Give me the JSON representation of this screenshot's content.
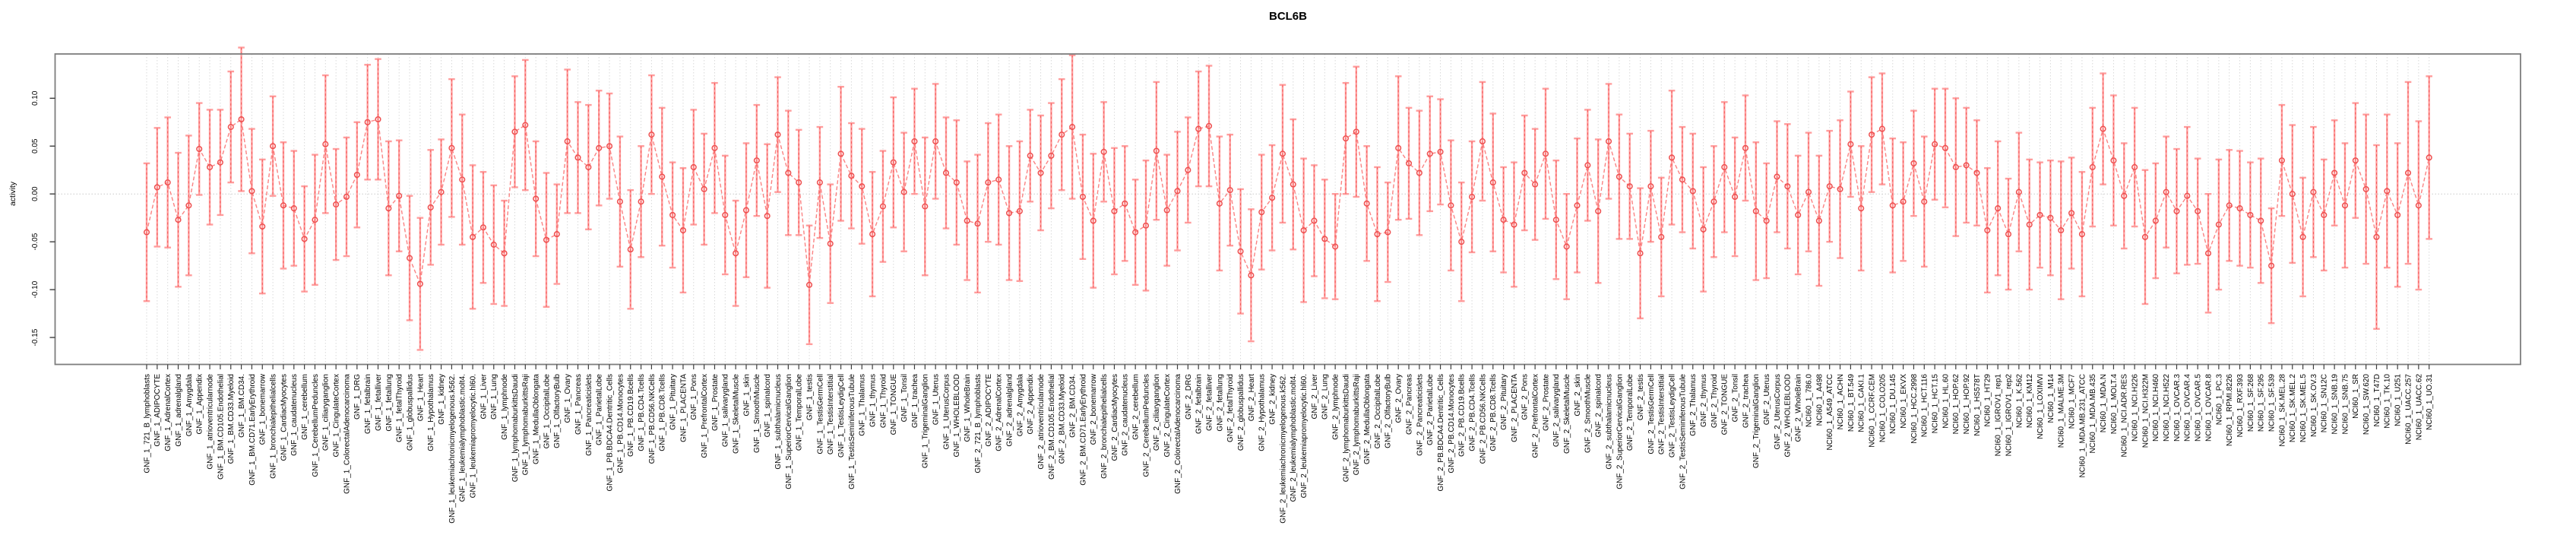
{
  "figure": {
    "title": "BCL6B"
  },
  "chart_data": {
    "type": "line",
    "subtype": "points-with-error-bars",
    "title": "BCL6B",
    "xlabel": "",
    "ylabel": "activity",
    "y_tick_labels": [
      "0.10",
      "0.05",
      "0.00",
      "-0.05",
      "-0.10",
      "-0.15"
    ],
    "y_tick_values": [
      0.1,
      0.05,
      0.0,
      -0.05,
      -0.1,
      -0.15
    ],
    "ylim": [
      -0.177,
      0.146
    ],
    "zero_line_dotted": true,
    "vertical_gridlines_dotted_per_sample": true,
    "legend": "none",
    "point_marker": "open-circle",
    "line_style": "dashed",
    "colors": {
      "error_bar": "#ff9d9d",
      "error_bar_dash": "#f35b5b",
      "point": "#ee4f4f",
      "series_line": "#fb8383",
      "gridline": "#d9d9d9",
      "zero_line": "#c9c9c9",
      "box": "#7d7d7d",
      "tick": "#3f3f3f",
      "text": "#000000"
    },
    "lists": {
      "gnf_tissues": [
        "721_B_lymphoblasts",
        "ADIPOCYTE",
        "AdrenalCortex",
        "adrenalgland",
        "Amygdala",
        "Appendix",
        "atrioventricularnode",
        "BM.CD105.Endothelial",
        "BM.CD33.Myeloid",
        "BM.CD34.",
        "BM.CD71.EarlyErythroid",
        "bonemarrow",
        "bronchialepithelialcells",
        "CardiacMyocytes",
        "caudatenucleus",
        "cerebellum",
        "CerebellumPeduncles",
        "ciliaryganglion",
        "CingulateCortex",
        "ColorectalAdenocarcinoma",
        "DRG",
        "fetalbrain",
        "fetalliver",
        "fetallung",
        "fetalThyroid",
        "globuspallidus",
        "Heart",
        "Hypothalamus",
        "kidney",
        "leukemiachronicmyelogenous.k562.",
        "leukemialymphoblastic.molt4.",
        "leukemiapromyelocytic.hl60.",
        "Liver",
        "Lung",
        "lymphnode",
        "lymphomaburkittsDaudi",
        "lymphomaburkittsRaji",
        "MedullaOblongata",
        "OccipitalLobe",
        "OlfactoryBulb",
        "Ovary",
        "Pancreas",
        "Pancreaticislets",
        "ParietalLobe",
        "PB.BDCA4.Dentritic_Cells",
        "PB.CD14.Monocytes",
        "PB.CD19.Bcells",
        "PB.CD4.Tcells",
        "PB.CD56.NKCells",
        "PB.CD8.Tcells",
        "Pituitary",
        "PLACENTA",
        "Pons",
        "PrefrontalCortex",
        "Prostate",
        "salivarygland",
        "SkeletalMuscle",
        "skin",
        "SmoothMuscle",
        "spinalcord",
        "subthalamicnucleus",
        "SuperiorCervicalGanglion",
        "TemporalLobe",
        "testis",
        "TestisGermCell",
        "TestisInterstitial",
        "TestisLeydigCell",
        "TestisSeminiferousTubule",
        "Thalamus",
        "thymus",
        "Thyroid",
        "TONGUE",
        "Tonsil",
        "trachea",
        "TrigeminalGanglion",
        "Uterus",
        "UterusCorpus",
        "WHOLEBLOOD",
        "WholeBrain"
      ],
      "nci60_lines": [
        "786.0",
        "A498",
        "A549_ATCC",
        "ACHN",
        "BT.549",
        "CAKI.1",
        "CCRF.CEM",
        "COLO205",
        "DU.145",
        "EKVX",
        "HCC.2998",
        "HCT.116",
        "HCT.15",
        "HL.60",
        "HOP.62",
        "HOP.92",
        "HS578T",
        "HT29",
        "IGROV1_rep1",
        "IGROV1_rep2",
        "K.562",
        "KM12",
        "LOXIMVI",
        "M14",
        "MALME.3M",
        "MCF7",
        "MDA.MB.231_ATCC",
        "MDA.MB.435",
        "MDA.N",
        "MOLT.4",
        "NCI.ADR.RES",
        "NCI.H226",
        "NCI.H322M",
        "NCI.H460",
        "NCI.H522",
        "OVCAR.3",
        "OVCAR.4",
        "OVCAR.5",
        "OVCAR.8",
        "PC.3",
        "RPMI.8226",
        "RXF.393",
        "SF.268",
        "SF.295",
        "SF.539",
        "SK.MEL.28",
        "SK.MEL.2",
        "SK.MEL.5",
        "SK.OV.3",
        "SN12C",
        "SNB.19",
        "SNB.75",
        "SR",
        "SW.620",
        "T47D",
        "TK.10",
        "U251",
        "UACC.257",
        "UACC.62",
        "UO.31"
      ]
    },
    "sample_groups": [
      {
        "prefix": "GNF_1_",
        "names_ref": "gnf_tissues"
      },
      {
        "prefix": "GNF_2_",
        "names_ref": "gnf_tissues"
      },
      {
        "prefix": "NCI60_1_",
        "names_ref": "nci60_lines"
      }
    ],
    "values": [
      -0.04,
      0.007,
      0.012,
      -0.027,
      -0.012,
      0.047,
      0.028,
      0.033,
      0.07,
      0.078,
      0.003,
      -0.034,
      0.05,
      -0.012,
      -0.015,
      -0.047,
      -0.027,
      0.052,
      -0.011,
      -0.003,
      0.02,
      0.075,
      0.078,
      -0.015,
      -0.002,
      -0.067,
      -0.094,
      -0.014,
      0.002,
      0.048,
      0.015,
      -0.045,
      -0.035,
      -0.053,
      -0.062,
      0.065,
      0.072,
      -0.005,
      -0.048,
      -0.042,
      0.055,
      0.038,
      0.028,
      0.048,
      0.05,
      -0.008,
      -0.058,
      -0.008,
      0.062,
      0.018,
      -0.022,
      -0.038,
      0.028,
      0.005,
      0.048,
      -0.022,
      -0.062,
      -0.017,
      0.035,
      -0.023,
      0.062,
      0.022,
      0.012,
      -0.095,
      0.012,
      -0.052,
      0.042,
      0.019,
      0.008,
      -0.042,
      -0.013,
      0.033,
      0.002,
      0.055,
      -0.013,
      0.055,
      0.022,
      0.012,
      -0.028,
      -0.031,
      0.012,
      0.015,
      -0.02,
      -0.018,
      0.04,
      0.022,
      0.04,
      0.062,
      0.07,
      -0.003,
      -0.028,
      0.044,
      -0.018,
      -0.01,
      -0.04,
      -0.033,
      0.045,
      -0.017,
      0.003,
      0.025,
      0.068,
      0.071,
      -0.01,
      0.004,
      -0.06,
      -0.085,
      -0.019,
      -0.004,
      0.042,
      0.01,
      -0.038,
      -0.028,
      -0.047,
      -0.055,
      0.058,
      0.065,
      -0.01,
      -0.042,
      -0.04,
      0.048,
      0.032,
      0.022,
      0.042,
      0.044,
      -0.012,
      -0.05,
      -0.003,
      0.055,
      0.012,
      -0.027,
      -0.032,
      0.022,
      0.01,
      0.042,
      -0.027,
      -0.055,
      -0.012,
      0.03,
      -0.018,
      0.055,
      0.018,
      0.008,
      -0.062,
      0.008,
      -0.045,
      0.038,
      0.015,
      0.003,
      -0.037,
      -0.008,
      0.028,
      -0.003,
      0.048,
      -0.018,
      -0.028,
      0.018,
      0.008,
      -0.022,
      0.002,
      -0.028,
      0.008,
      0.005,
      0.052,
      -0.015,
      0.062,
      0.068,
      -0.012,
      -0.008,
      0.032,
      -0.008,
      0.052,
      0.048,
      0.028,
      0.03,
      0.022,
      -0.038,
      -0.015,
      -0.042,
      0.002,
      -0.032,
      -0.022,
      -0.025,
      -0.038,
      -0.02,
      -0.042,
      0.028,
      0.068,
      0.035,
      -0.002,
      0.028,
      -0.045,
      -0.028,
      0.002,
      -0.018,
      -0.002,
      -0.018,
      -0.062,
      -0.032,
      -0.012,
      -0.015,
      -0.022,
      -0.028,
      -0.075,
      0.035,
      0.0,
      -0.045,
      0.002,
      -0.022,
      0.022,
      -0.012,
      0.035,
      0.005,
      -0.045,
      0.003,
      -0.022,
      0.022,
      -0.012,
      0.038
    ],
    "ci_halfwidth": [
      0.072,
      0.062,
      0.068,
      0.07,
      0.073,
      0.048,
      0.06,
      0.055,
      0.058,
      0.075,
      0.065,
      0.07,
      0.052,
      0.066,
      0.06,
      0.055,
      0.068,
      0.072,
      0.058,
      0.062,
      0.055,
      0.06,
      0.063,
      0.07,
      0.058,
      0.065,
      0.069,
      0.06,
      0.055,
      0.072,
      0.068,
      0.075,
      0.058,
      0.062,
      0.055,
      0.058,
      0.068,
      0.06,
      0.07,
      0.052,
      0.075,
      0.058,
      0.065,
      0.06,
      0.055,
      0.068,
      0.062,
      0.058,
      0.062,
      0.072,
      0.055,
      0.065,
      0.06,
      0.058,
      0.068,
      0.062,
      0.055,
      0.07,
      0.058,
      0.075,
      0.06,
      0.065,
      0.055,
      0.062,
      0.058,
      0.062,
      0.07,
      0.055,
      0.06,
      0.065,
      0.058,
      0.068,
      0.062,
      0.055,
      0.072,
      0.06,
      0.058,
      0.065,
      0.062,
      0.072,
      0.062,
      0.068,
      0.07,
      0.073,
      0.048,
      0.06,
      0.055,
      0.058,
      0.075,
      0.065,
      0.07,
      0.052,
      0.066,
      0.06,
      0.055,
      0.068,
      0.072,
      0.058,
      0.062,
      0.055,
      0.06,
      0.063,
      0.07,
      0.058,
      0.065,
      0.069,
      0.06,
      0.055,
      0.072,
      0.068,
      0.075,
      0.058,
      0.062,
      0.055,
      0.058,
      0.068,
      0.06,
      0.07,
      0.052,
      0.075,
      0.058,
      0.065,
      0.06,
      0.055,
      0.068,
      0.062,
      0.058,
      0.062,
      0.072,
      0.055,
      0.065,
      0.06,
      0.058,
      0.068,
      0.062,
      0.055,
      0.07,
      0.058,
      0.075,
      0.06,
      0.065,
      0.055,
      0.068,
      0.058,
      0.062,
      0.07,
      0.055,
      0.06,
      0.065,
      0.058,
      0.068,
      0.062,
      0.055,
      0.072,
      0.06,
      0.058,
      0.065,
      0.062,
      0.062,
      0.068,
      0.058,
      0.072,
      0.055,
      0.065,
      0.06,
      0.058,
      0.07,
      0.062,
      0.055,
      0.068,
      0.058,
      0.062,
      0.072,
      0.06,
      0.055,
      0.065,
      0.07,
      0.058,
      0.062,
      0.068,
      0.055,
      0.06,
      0.072,
      0.058,
      0.065,
      0.062,
      0.058,
      0.068,
      0.055,
      0.062,
      0.07,
      0.06,
      0.058,
      0.065,
      0.072,
      0.055,
      0.062,
      0.068,
      0.058,
      0.06,
      0.055,
      0.065,
      0.06,
      0.058,
      0.072,
      0.062,
      0.068,
      0.058,
      0.055,
      0.065,
      0.06,
      0.078,
      0.096,
      0.08,
      0.075,
      0.095,
      0.088,
      0.085
    ]
  }
}
